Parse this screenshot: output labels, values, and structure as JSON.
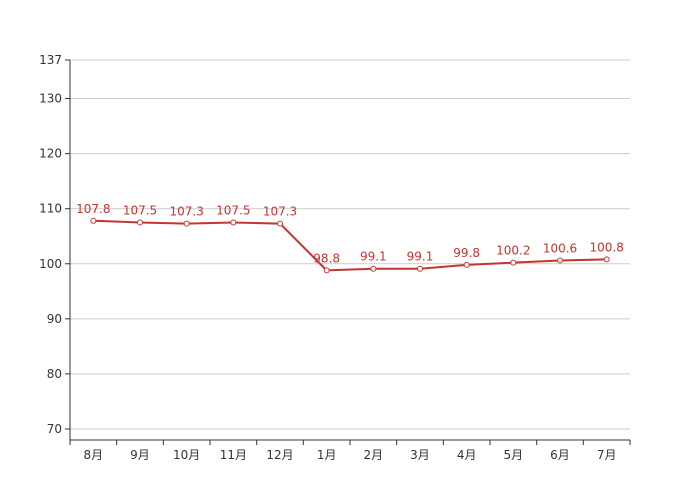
{
  "chart_data": {
    "type": "line",
    "title": "",
    "xlabel": "",
    "ylabel": "",
    "categories": [
      "8月",
      "9月",
      "10月",
      "11月",
      "12月",
      "1月",
      "2月",
      "3月",
      "4月",
      "5月",
      "6月",
      "7月"
    ],
    "series": [
      {
        "values": [
          107.8,
          107.5,
          107.3,
          107.5,
          107.3,
          98.8,
          99.1,
          99.1,
          99.8,
          100.2,
          100.6,
          100.8
        ],
        "color": "#c23531"
      }
    ],
    "yticks": [
      70,
      80,
      90,
      100,
      110,
      120,
      130,
      137
    ],
    "ylim": [
      68,
      137
    ],
    "grid": true,
    "data_labels": true,
    "legend": "none"
  }
}
